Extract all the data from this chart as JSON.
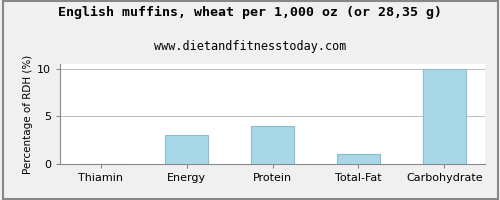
{
  "title": "English muffins, wheat per 1,000 oz (or 28,35 g)",
  "subtitle": "www.dietandfitnesstoday.com",
  "categories": [
    "Thiamin",
    "Energy",
    "Protein",
    "Total-Fat",
    "Carbohydrate"
  ],
  "values": [
    0,
    3.0,
    4.0,
    1.1,
    10.0
  ],
  "bar_color": "#a8d8e8",
  "bar_edge_color": "#88bfd0",
  "ylabel": "Percentage of RDH (%)",
  "ylim": [
    0,
    10.5
  ],
  "yticks": [
    0,
    5,
    10
  ],
  "background_color": "#ffffff",
  "outer_background": "#f0f0f0",
  "grid_color": "#bbbbbb",
  "title_fontsize": 9.5,
  "subtitle_fontsize": 8.5,
  "axis_label_fontsize": 7.5,
  "tick_fontsize": 8
}
